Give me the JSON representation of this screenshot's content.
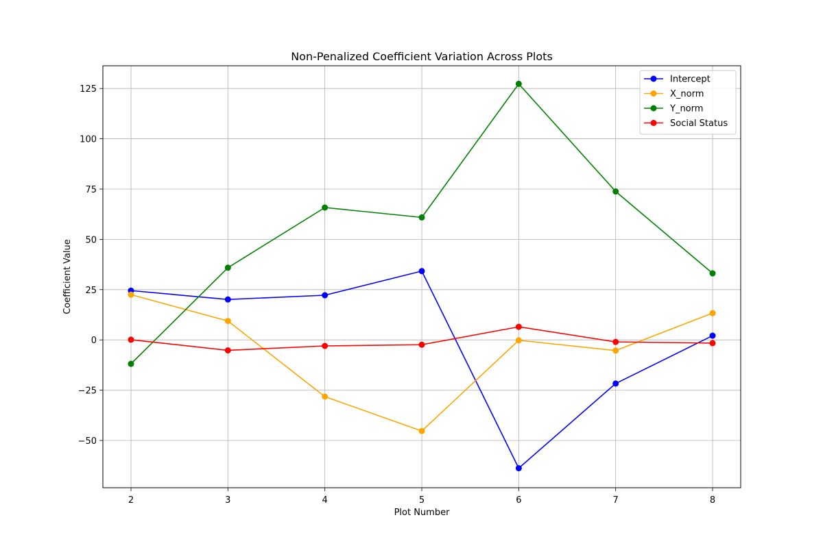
{
  "chart_data": {
    "type": "line",
    "title": "Non-Penalized Coefficient Variation Across Plots",
    "xlabel": "Plot Number",
    "ylabel": "Coefficient Value",
    "x": [
      2,
      3,
      4,
      5,
      6,
      7,
      8
    ],
    "xlim": [
      1.71,
      8.29
    ],
    "ylim": [
      -73.5,
      136.3
    ],
    "xticks": [
      2,
      3,
      4,
      5,
      6,
      7,
      8
    ],
    "yticks": [
      -50,
      -25,
      0,
      25,
      50,
      75,
      100,
      125
    ],
    "ytick_labels": [
      "−50",
      "−25",
      "0",
      "25",
      "50",
      "75",
      "100",
      "125"
    ],
    "grid": true,
    "legend_position": "top-right",
    "series": [
      {
        "name": "Intercept",
        "color": "#0000ff",
        "values": [
          24.5,
          20.1,
          22.2,
          34.2,
          -63.8,
          -21.7,
          2.1
        ]
      },
      {
        "name": "X_norm",
        "color": "#ffa500",
        "values": [
          22.5,
          9.4,
          -28.2,
          -45.3,
          -0.2,
          -5.3,
          13.3
        ]
      },
      {
        "name": "Y_norm",
        "color": "#008000",
        "values": [
          -11.9,
          35.9,
          65.8,
          60.9,
          127.3,
          73.8,
          33.1
        ]
      },
      {
        "name": "Social Status",
        "color": "#ff0000",
        "values": [
          0.1,
          -5.2,
          -3.0,
          -2.4,
          6.5,
          -1.0,
          -1.6
        ]
      }
    ]
  }
}
